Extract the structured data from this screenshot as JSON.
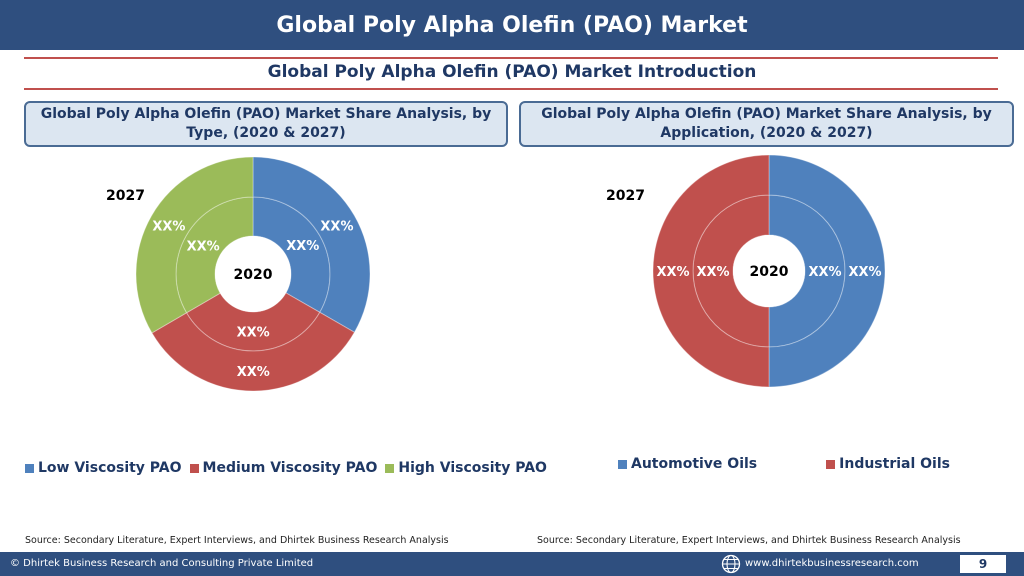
{
  "header": {
    "title": "Global Poly Alpha Olefin (PAO) Market"
  },
  "section": {
    "subtitle": "Global Poly Alpha Olefin (PAO) Market  Introduction"
  },
  "panels": [
    {
      "title": "Global Poly Alpha Olefin (PAO) Market  Share Analysis, by Type, (2020 & 2027)",
      "source": "Source: Secondary Literature, Expert Interviews, and Dhirtek Business Research Analysis"
    },
    {
      "title": "Global Poly Alpha Olefin (PAO) Market  Share Analysis, by Application, (2020 & 2027)",
      "source": "Source: Secondary Literature, Expert Interviews, and Dhirtek Business Research Analysis"
    }
  ],
  "chart_data": [
    {
      "type": "pie",
      "variant": "nested-doughnut",
      "title": "Global Poly Alpha Olefin (PAO) Market  Share Analysis, by Type, (2020 & 2027)",
      "outer_ring_label": "2027",
      "center_label": "2020",
      "categories": [
        "Low Viscosity PAO",
        "Medium Viscosity PAO",
        "High Viscosity PAO"
      ],
      "colors": [
        "#4f81bd",
        "#c0504d",
        "#9bbb59"
      ],
      "series": [
        {
          "name": "2020",
          "values": [
            33.3,
            33.3,
            33.4
          ],
          "labels": [
            "XX%",
            "XX%",
            "XX%"
          ]
        },
        {
          "name": "2027",
          "values": [
            33.3,
            33.3,
            33.4
          ],
          "labels": [
            "XX%",
            "XX%",
            "XX%"
          ]
        }
      ],
      "legend": "bottom"
    },
    {
      "type": "pie",
      "variant": "nested-doughnut",
      "title": "Global Poly Alpha Olefin (PAO) Market  Share Analysis, by Application, (2020 & 2027)",
      "outer_ring_label": "2027",
      "center_label": "2020",
      "categories": [
        "Automotive Oils",
        "Industrial Oils"
      ],
      "colors": [
        "#4f81bd",
        "#c0504d"
      ],
      "series": [
        {
          "name": "2020",
          "values": [
            50,
            50
          ],
          "labels": [
            "XX%",
            "XX%"
          ]
        },
        {
          "name": "2027",
          "values": [
            50,
            50
          ],
          "labels": [
            "XX%",
            "XX%"
          ]
        }
      ],
      "legend": "bottom"
    }
  ],
  "footer": {
    "copyright": "© Dhirtek Business Research and Consulting Private Limited",
    "website": "www.dhirtekbusinessresearch.com",
    "page_number": "9",
    "icon": "globe-icon"
  }
}
